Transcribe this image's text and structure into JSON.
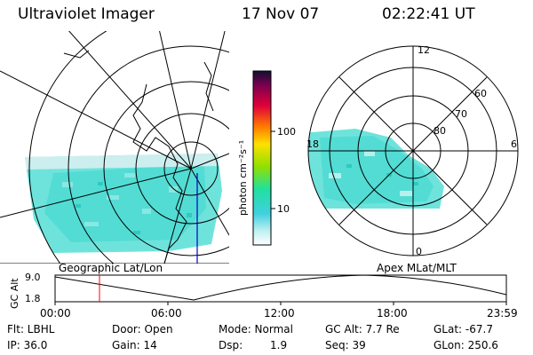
{
  "header": {
    "instrument": "Ultraviolet Imager",
    "date": "17 Nov 07",
    "time": "02:22:41 UT"
  },
  "colorbar": {
    "unit_label": "photon cm⁻²s⁻¹",
    "ticks": [
      "100",
      "10"
    ]
  },
  "polar_plot": {
    "mlt_labels": [
      "12",
      "18",
      "6",
      "0"
    ],
    "mlat_labels": [
      "60",
      "70",
      "80"
    ]
  },
  "panel_labels": {
    "left": "Geographic Lat/Lon",
    "right": "Apex MLat/MLT"
  },
  "altitude_plot": {
    "ylabel": "GC Alt",
    "yticks": [
      "9.0",
      "1.8"
    ],
    "xticks": [
      "00:00",
      "06:00",
      "12:00",
      "18:00",
      "23:59"
    ],
    "marker_time": "02:22:41"
  },
  "status": {
    "filter": "Flt: LBHL",
    "ip": "IP: 36.0",
    "door": "Door: Open",
    "gain": "Gain: 14",
    "mode": "Mode: Normal",
    "dsp_label": "Dsp:",
    "dsp_value": "1.9",
    "gc_alt": "GC Alt: 7.7 Re",
    "seq": "Seq: 39",
    "glat": "GLat: -67.7",
    "glon": "GLon: 250.6"
  }
}
